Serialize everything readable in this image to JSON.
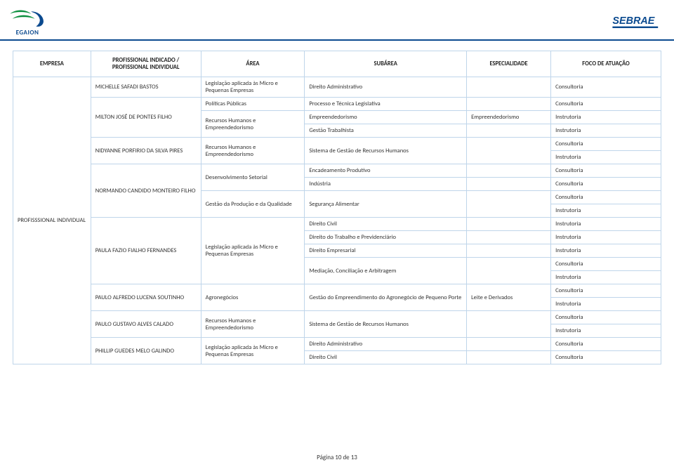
{
  "logos": {
    "left_text": "EGAION",
    "left_colors": {
      "swoosh": "#0b8f3e",
      "shape": "#0b4a8f"
    },
    "right_text": "SEBRAE",
    "right_color": "#0b4a8f",
    "underline_color": "#0b4a8f"
  },
  "table": {
    "border_color": "#bfd5ea",
    "headers": {
      "empresa": "EMPRESA",
      "profissional": "PROFISSIONAL INDICADO / PROFISSIONAL INDIVIDUAL",
      "area": "ÁREA",
      "subarea": "SUBÁREA",
      "especialidade": "ESPECIALIDADE",
      "foco": "FOCO DE ATUAÇÃO"
    },
    "empresa_label": "PROFISSSIONAL INDIVIDUAL",
    "rows": [
      {
        "prof": "MICHELLE SAFADI BASTOS",
        "area": "Legislação aplicada às Micro e Pequenas Empresas",
        "sub": "Direito Administrativo",
        "esp": "",
        "foco": "Consultoria"
      },
      {
        "prof": "MILTON JOSÉ DE PONTES FILHO",
        "area": "Políticas Públicas",
        "sub": "Processo e Técnica Legislativa",
        "esp": "",
        "foco": "Consultoria"
      },
      {
        "prof": "",
        "area": "Recursos Humanos e Empreendedorismo",
        "sub": "Empreendedorismo",
        "esp": "Empreendedorismo",
        "foco": "Instrutoria"
      },
      {
        "prof": "",
        "area": "",
        "sub": "Gestão Trabalhista",
        "esp": "",
        "foco": "Instrutoria"
      },
      {
        "prof": "NIDYANNE PORFIRIO DA SILVA PIRES",
        "area": "Recursos Humanos e Empreendedorismo",
        "sub": "Sistema de Gestão de Recursos Humanos",
        "esp": "",
        "foco": "Consultoria"
      },
      {
        "prof": "",
        "area": "",
        "sub": "",
        "esp": "",
        "foco": "Instrutoria"
      },
      {
        "prof": "NORMANDO CANDIDO MONTEIRO FILHO",
        "area": "Desenvolvimento Setorial",
        "sub": "Encadeamento Produtivo",
        "esp": "",
        "foco": "Consultoria"
      },
      {
        "prof": "",
        "area": "",
        "sub": "Indústria",
        "esp": "",
        "foco": "Consultoria"
      },
      {
        "prof": "",
        "area": "Gestão da Produção e da Qualidade",
        "sub": "Segurança Alimentar",
        "esp": "",
        "foco": "Consultoria"
      },
      {
        "prof": "",
        "area": "",
        "sub": "",
        "esp": "",
        "foco": "Instrutoria"
      },
      {
        "prof": "PAULA FAZIO FIALHO FERNANDES",
        "area": "Legislação aplicada às Micro e Pequenas Empresas",
        "sub": "Direito Civil",
        "esp": "",
        "foco": "Instrutoria"
      },
      {
        "prof": "",
        "area": "",
        "sub": "Direito do Trabalho e Previdenciário",
        "esp": "",
        "foco": "Instrutoria"
      },
      {
        "prof": "",
        "area": "",
        "sub": "Direito Empresarial",
        "esp": "",
        "foco": "Instrutoria"
      },
      {
        "prof": "",
        "area": "",
        "sub": "Mediação, Conciliação e Arbitragem",
        "esp": "",
        "foco": "Consultoria"
      },
      {
        "prof": "",
        "area": "",
        "sub": "",
        "esp": "",
        "foco": "Instrutoria"
      },
      {
        "prof": "PAULO ALFREDO LUCENA SOUTINHO",
        "area": "Agronegócios",
        "sub": "Gestão do Empreendimento do Agronegócio de Pequeno Porte",
        "esp": "Leite e Derivados",
        "foco": "Consultoria"
      },
      {
        "prof": "",
        "area": "",
        "sub": "",
        "esp": "",
        "foco": "Instrutoria"
      },
      {
        "prof": "PAULO GUSTAVO ALVES CALADO",
        "area": "Recursos Humanos e Empreendedorismo",
        "sub": "Sistema de Gestão de Recursos Humanos",
        "esp": "",
        "foco": "Consultoria"
      },
      {
        "prof": "",
        "area": "",
        "sub": "",
        "esp": "",
        "foco": "Instrutoria"
      },
      {
        "prof": "PHILLIP GUEDES MELO GALINDO",
        "area": "Legislação aplicada às Micro e Pequenas Empresas",
        "sub": "Direito Administrativo",
        "esp": "",
        "foco": "Consultoria"
      },
      {
        "prof": "",
        "area": "",
        "sub": "Direito Civil",
        "esp": "",
        "foco": "Consultoria"
      }
    ]
  },
  "footer": {
    "page_label": "Página 10 de 13"
  }
}
